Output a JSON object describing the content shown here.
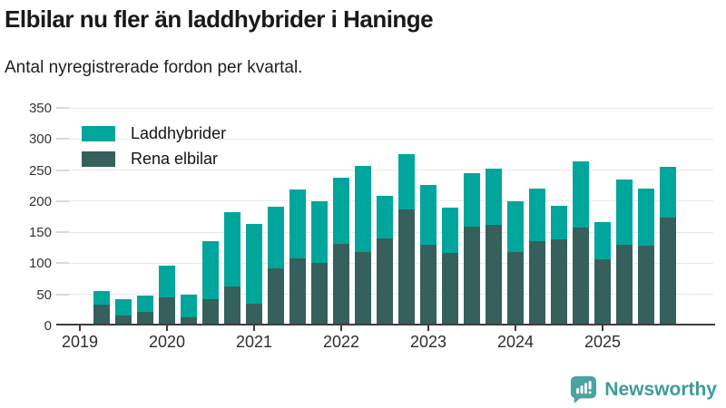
{
  "header": {
    "title": "Elbilar nu fler än laddhybrider i Haninge",
    "subtitle": "Antal nyregistrerade fordon per kvartal."
  },
  "legend": {
    "items": [
      {
        "label": "Laddhybrider",
        "color": "#00a69c"
      },
      {
        "label": "Rena elbilar",
        "color": "#35605b"
      }
    ]
  },
  "chart_data": {
    "type": "bar",
    "stacked": true,
    "title": "Elbilar nu fler än laddhybrider i Haninge",
    "subtitle": "Antal nyregistrerade fordon per kvartal.",
    "ylabel": "",
    "xlabel": "",
    "ylim": [
      0,
      350
    ],
    "yticks": [
      0,
      50,
      100,
      150,
      200,
      250,
      300,
      350
    ],
    "x_tick_labels": [
      "2019",
      "2020",
      "2021",
      "2022",
      "2023",
      "2024",
      "2025"
    ],
    "grid": true,
    "legend_position": "top-left-inside",
    "quarters": [
      "2019-Q2",
      "2019-Q3",
      "2019-Q4",
      "2020-Q1",
      "2020-Q2",
      "2020-Q3",
      "2020-Q4",
      "2021-Q1",
      "2021-Q2",
      "2021-Q3",
      "2021-Q4",
      "2022-Q1",
      "2022-Q2",
      "2022-Q3",
      "2022-Q4",
      "2023-Q1",
      "2023-Q2",
      "2023-Q3",
      "2023-Q4",
      "2024-Q1",
      "2024-Q2",
      "2024-Q3",
      "2024-Q4",
      "2025-Q1",
      "2025-Q2",
      "2025-Q3",
      "2025-Q4"
    ],
    "series": [
      {
        "name": "Laddhybrider",
        "color": "#00a69c",
        "values": [
          23,
          27,
          26,
          52,
          36,
          93,
          120,
          129,
          99,
          111,
          100,
          106,
          138,
          68,
          89,
          96,
          73,
          86,
          90,
          82,
          85,
          53,
          107,
          61,
          105,
          91,
          81
        ]
      },
      {
        "name": "Rena elbilar",
        "color": "#35605b",
        "values": [
          33,
          16,
          22,
          45,
          13,
          42,
          63,
          35,
          92,
          108,
          100,
          132,
          118,
          140,
          187,
          130,
          117,
          159,
          162,
          118,
          135,
          139,
          157,
          106,
          130,
          129,
          174
        ]
      }
    ],
    "stack_order_bottom_to_top": [
      "Rena elbilar",
      "Laddhybrider"
    ],
    "totals": [
      56,
      43,
      48,
      97,
      49,
      135,
      183,
      164,
      191,
      219,
      200,
      238,
      256,
      208,
      276,
      226,
      190,
      245,
      252,
      200,
      220,
      192,
      264,
      167,
      235,
      220,
      255
    ]
  },
  "footer": {
    "brand": "Newsworthy",
    "brand_color": "#3e9c9a",
    "icon_color": "#4aa3a1"
  }
}
